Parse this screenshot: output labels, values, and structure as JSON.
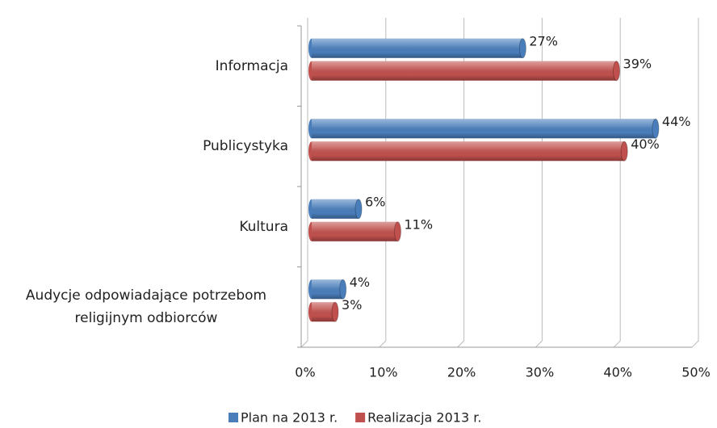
{
  "chart_data": {
    "type": "bar",
    "orientation": "horizontal",
    "categories": [
      "Informacja",
      "Publicystyka",
      "Kultura",
      "Audycje odpowiadające potrzebom religijnym odbiorców"
    ],
    "series": [
      {
        "name": "Plan na 2013 r.",
        "color": "#4a7ebb",
        "values": [
          27,
          44,
          6,
          4
        ],
        "value_labels": [
          "27%",
          "44%",
          "6%",
          "4%"
        ]
      },
      {
        "name": "Realizacja 2013 r.",
        "color": "#c0504d",
        "values": [
          39,
          40,
          11,
          3
        ],
        "value_labels": [
          "39%",
          "40%",
          "11%",
          "3%"
        ]
      }
    ],
    "xlim": [
      0,
      50
    ],
    "xticks": [
      {
        "value": 0,
        "label": "0%"
      },
      {
        "value": 10,
        "label": "10%"
      },
      {
        "value": 20,
        "label": "20%"
      },
      {
        "value": 30,
        "label": "30%"
      },
      {
        "value": 40,
        "label": "40%"
      },
      {
        "value": 50,
        "label": "50%"
      }
    ],
    "grid": true,
    "legend": "bottom"
  }
}
